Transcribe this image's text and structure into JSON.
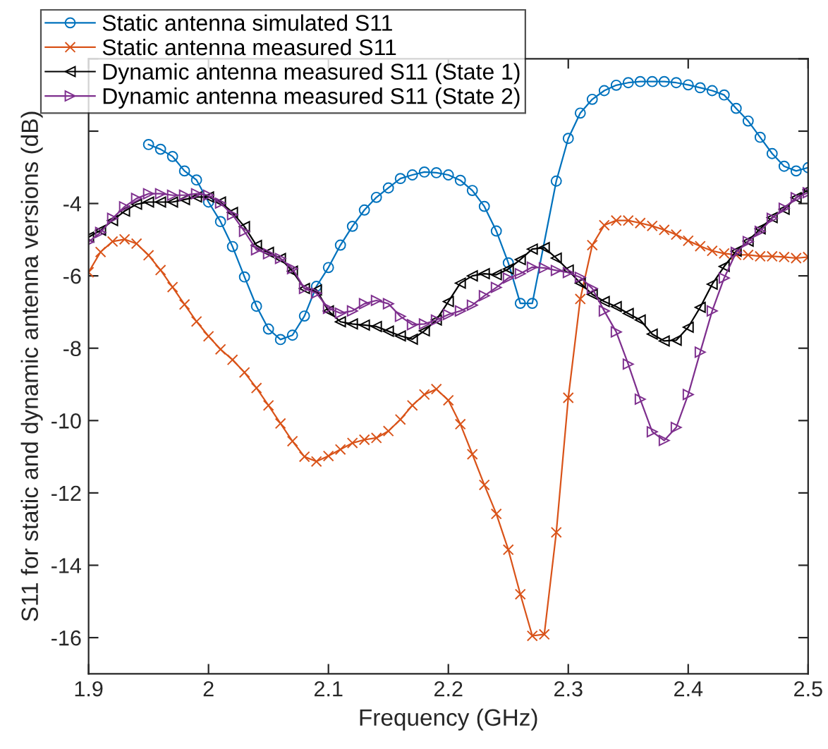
{
  "chart_data": {
    "type": "line",
    "xlabel": "Frequency (GHz)",
    "ylabel": "S11 for static and dynamic antenna versions (dB)",
    "xlim": [
      1.9,
      2.5
    ],
    "ylim": [
      -17,
      0
    ],
    "xticks": [
      1.9,
      2,
      2.1,
      2.2,
      2.3,
      2.4,
      2.5
    ],
    "yticks": [
      -16,
      -14,
      -12,
      -10,
      -8,
      -6,
      -4,
      {
        "value": -2,
        "label": null
      },
      {
        "value": 0,
        "label": null
      }
    ],
    "grid": false,
    "legend": "top left",
    "line_style": "solid",
    "series": [
      {
        "name": "Static antenna simulated S11",
        "color": "#0072bd",
        "marker": "circle",
        "x": [
          1.95,
          1.96,
          1.97,
          1.98,
          1.99,
          2.0,
          2.01,
          2.02,
          2.03,
          2.04,
          2.05,
          2.06,
          2.07,
          2.08,
          2.09,
          2.1,
          2.11,
          2.12,
          2.13,
          2.14,
          2.15,
          2.16,
          2.17,
          2.18,
          2.19,
          2.2,
          2.21,
          2.22,
          2.23,
          2.24,
          2.25,
          2.26,
          2.27,
          2.29,
          2.3,
          2.31,
          2.32,
          2.33,
          2.34,
          2.35,
          2.36,
          2.37,
          2.38,
          2.39,
          2.4,
          2.41,
          2.42,
          2.43,
          2.44,
          2.45,
          2.46,
          2.47,
          2.48,
          2.49,
          2.5
        ],
        "values": [
          -2.37,
          -2.5,
          -2.7,
          -3.1,
          -3.35,
          -3.96,
          -4.5,
          -5.19,
          -6.03,
          -6.84,
          -7.47,
          -7.76,
          -7.64,
          -7.11,
          -6.29,
          -5.77,
          -5.15,
          -4.63,
          -4.18,
          -3.83,
          -3.57,
          -3.31,
          -3.21,
          -3.13,
          -3.15,
          -3.21,
          -3.36,
          -3.64,
          -4.08,
          -4.76,
          -5.64,
          -6.76,
          -6.76,
          -3.38,
          -2.2,
          -1.5,
          -1.12,
          -0.88,
          -0.73,
          -0.66,
          -0.63,
          -0.63,
          -0.63,
          -0.66,
          -0.72,
          -0.8,
          -0.88,
          -1.0,
          -1.37,
          -1.72,
          -2.17,
          -2.62,
          -2.97,
          -3.1,
          -3.01
        ]
      },
      {
        "name": "Static antenna measured S11",
        "color": "#d95319",
        "marker": "cross",
        "x": [
          1.9,
          1.91,
          1.92,
          1.93,
          1.94,
          1.95,
          1.96,
          1.97,
          1.98,
          1.99,
          2.0,
          2.01,
          2.02,
          2.03,
          2.04,
          2.05,
          2.06,
          2.07,
          2.08,
          2.09,
          2.1,
          2.11,
          2.12,
          2.13,
          2.14,
          2.15,
          2.16,
          2.17,
          2.18,
          2.19,
          2.2,
          2.21,
          2.22,
          2.23,
          2.24,
          2.25,
          2.26,
          2.27,
          2.28,
          2.29,
          2.3,
          2.31,
          2.32,
          2.33,
          2.34,
          2.35,
          2.36,
          2.37,
          2.38,
          2.39,
          2.4,
          2.41,
          2.42,
          2.43,
          2.44,
          2.45,
          2.46,
          2.47,
          2.48,
          2.49,
          2.5
        ],
        "values": [
          -5.9,
          -5.34,
          -5.05,
          -4.99,
          -5.11,
          -5.43,
          -5.84,
          -6.31,
          -6.79,
          -7.26,
          -7.67,
          -8.03,
          -8.32,
          -8.67,
          -9.1,
          -9.58,
          -10.08,
          -10.57,
          -11.0,
          -11.13,
          -10.98,
          -10.8,
          -10.62,
          -10.53,
          -10.48,
          -10.29,
          -9.97,
          -9.58,
          -9.28,
          -9.13,
          -9.44,
          -10.1,
          -10.93,
          -11.78,
          -12.58,
          -13.57,
          -14.8,
          -15.95,
          -15.91,
          -13.09,
          -9.37,
          -6.64,
          -5.15,
          -4.6,
          -4.47,
          -4.47,
          -4.54,
          -4.62,
          -4.73,
          -4.86,
          -5.03,
          -5.18,
          -5.31,
          -5.38,
          -5.42,
          -5.42,
          -5.46,
          -5.46,
          -5.48,
          -5.51,
          -5.48
        ]
      },
      {
        "name": "Dynamic antenna measured S11 (State 1)",
        "color": "#000000",
        "marker": "triangle-left",
        "x": [
          1.9,
          1.91,
          1.92,
          1.93,
          1.94,
          1.95,
          1.96,
          1.97,
          1.98,
          1.99,
          2.0,
          2.01,
          2.02,
          2.03,
          2.04,
          2.05,
          2.06,
          2.07,
          2.08,
          2.09,
          2.1,
          2.11,
          2.12,
          2.13,
          2.14,
          2.15,
          2.16,
          2.17,
          2.18,
          2.19,
          2.2,
          2.21,
          2.22,
          2.23,
          2.24,
          2.25,
          2.26,
          2.27,
          2.28,
          2.29,
          2.3,
          2.31,
          2.32,
          2.33,
          2.34,
          2.35,
          2.36,
          2.37,
          2.38,
          2.39,
          2.4,
          2.41,
          2.42,
          2.43,
          2.44,
          2.45,
          2.46,
          2.47,
          2.48,
          2.49,
          2.5
        ],
        "values": [
          -4.93,
          -4.74,
          -4.47,
          -4.21,
          -4.02,
          -3.96,
          -3.96,
          -3.96,
          -3.89,
          -3.82,
          -3.82,
          -3.96,
          -4.25,
          -4.64,
          -5.16,
          -5.35,
          -5.52,
          -5.87,
          -6.35,
          -6.39,
          -6.97,
          -7.27,
          -7.33,
          -7.36,
          -7.4,
          -7.53,
          -7.66,
          -7.75,
          -7.52,
          -7.22,
          -6.71,
          -6.2,
          -6.0,
          -5.94,
          -5.97,
          -5.81,
          -5.55,
          -5.26,
          -5.22,
          -5.51,
          -5.84,
          -6.2,
          -6.51,
          -6.71,
          -6.85,
          -7.04,
          -7.22,
          -7.61,
          -7.8,
          -7.78,
          -7.42,
          -6.87,
          -6.23,
          -5.74,
          -5.32,
          -5.04,
          -4.7,
          -4.39,
          -4.16,
          -3.84,
          -3.62
        ]
      },
      {
        "name": "Dynamic antenna measured S11 (State 2)",
        "color": "#7e2f8e",
        "marker": "triangle-right",
        "x": [
          1.9,
          1.91,
          1.92,
          1.93,
          1.94,
          1.95,
          1.96,
          1.97,
          1.98,
          1.99,
          2.0,
          2.01,
          2.02,
          2.03,
          2.04,
          2.05,
          2.06,
          2.07,
          2.08,
          2.09,
          2.1,
          2.11,
          2.12,
          2.13,
          2.14,
          2.15,
          2.16,
          2.17,
          2.18,
          2.19,
          2.2,
          2.21,
          2.22,
          2.23,
          2.24,
          2.25,
          2.26,
          2.27,
          2.28,
          2.29,
          2.3,
          2.31,
          2.32,
          2.33,
          2.34,
          2.35,
          2.36,
          2.37,
          2.38,
          2.39,
          2.4,
          2.41,
          2.42,
          2.43,
          2.44,
          2.45,
          2.46,
          2.47,
          2.48,
          2.49,
          2.5
        ],
        "values": [
          -5.06,
          -4.8,
          -4.41,
          -4.09,
          -3.86,
          -3.73,
          -3.73,
          -3.77,
          -3.77,
          -3.73,
          -3.77,
          -3.99,
          -4.31,
          -4.77,
          -5.28,
          -5.39,
          -5.52,
          -5.8,
          -6.35,
          -6.48,
          -6.9,
          -7.03,
          -6.97,
          -6.77,
          -6.68,
          -6.77,
          -7.12,
          -7.35,
          -7.33,
          -7.22,
          -7.07,
          -6.97,
          -6.81,
          -6.55,
          -6.32,
          -6.06,
          -5.94,
          -5.76,
          -5.78,
          -5.85,
          -5.91,
          -6.04,
          -6.35,
          -6.97,
          -7.55,
          -8.44,
          -9.41,
          -10.31,
          -10.55,
          -10.19,
          -9.28,
          -8.11,
          -6.97,
          -6.06,
          -5.35,
          -5.05,
          -4.77,
          -4.41,
          -4.13,
          -3.84,
          -3.7
        ]
      }
    ]
  }
}
